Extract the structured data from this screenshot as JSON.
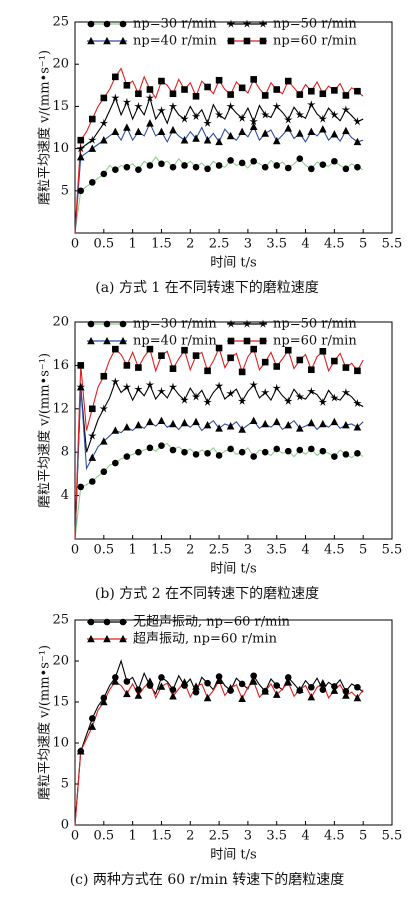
{
  "chart_data": [
    {
      "type": "line",
      "caption": "(a) 方式 1 在不同转速下的磨粒速度",
      "xlabel": "时间 t/s",
      "ylabel": "磨粒平均速度 v/(mm•s⁻¹)",
      "xlim": [
        0,
        5.5
      ],
      "xticks": [
        0,
        0.5,
        1.0,
        1.5,
        2.0,
        2.5,
        3.0,
        3.5,
        4.0,
        4.5,
        5.0,
        5.5
      ],
      "ylim": [
        0,
        25
      ],
      "yticks": [
        5,
        10,
        15,
        20,
        25
      ],
      "legend": "top",
      "legend_columns": 2,
      "x": [
        0,
        0.1,
        0.2,
        0.3,
        0.4,
        0.5,
        0.6,
        0.7,
        0.8,
        0.9,
        1.0,
        1.1,
        1.2,
        1.3,
        1.4,
        1.5,
        1.6,
        1.7,
        1.8,
        1.9,
        2.0,
        2.1,
        2.2,
        2.3,
        2.4,
        2.5,
        2.6,
        2.7,
        2.8,
        2.9,
        3.0,
        3.1,
        3.2,
        3.3,
        3.4,
        3.5,
        3.6,
        3.7,
        3.8,
        3.9,
        4.0,
        4.1,
        4.2,
        4.3,
        4.4,
        4.5,
        4.6,
        4.7,
        4.8,
        4.9,
        5.0
      ],
      "series": [
        {
          "name": "np=30 r/min",
          "color": "#8fcf8f",
          "marker": "circle",
          "marker_color": "#000000",
          "values": [
            0,
            5,
            5.5,
            6,
            6.5,
            7,
            8,
            7.5,
            8,
            7.8,
            8.2,
            7.5,
            8.5,
            8,
            9,
            8.2,
            8.5,
            7.8,
            8.8,
            8,
            8.5,
            7.8,
            8.3,
            7.6,
            8.5,
            8,
            7.8,
            8.6,
            8,
            8.3,
            7.7,
            8.5,
            8.2,
            7.8,
            8.6,
            8,
            8.4,
            7.7,
            8.2,
            8.8,
            8,
            7.6,
            8.4,
            8.1,
            7.9,
            8.5,
            8,
            7.6,
            8.2,
            7.8,
            7.5
          ]
        },
        {
          "name": "np=50 r/min",
          "color": "#000000",
          "marker": "star",
          "marker_color": "#000000",
          "values": [
            0,
            10,
            10.5,
            11,
            12,
            13,
            14.5,
            16,
            14,
            15.5,
            13.5,
            15,
            14,
            16,
            13.5,
            14.5,
            13,
            15,
            14,
            13.5,
            15,
            13.8,
            14.6,
            13,
            15.2,
            14,
            13.5,
            15,
            14.2,
            13.6,
            14.8,
            13.2,
            15.1,
            14,
            13.7,
            15,
            14.3,
            13.4,
            14.9,
            14,
            13.6,
            15.2,
            14.1,
            13.5,
            14.8,
            14,
            13.3,
            14.6,
            13.9,
            13.2,
            13.5
          ]
        },
        {
          "name": "np=40 r/min",
          "color": "#2f4f9f",
          "marker": "triangle",
          "marker_color": "#000000",
          "values": [
            0,
            9,
            9.5,
            10,
            10.5,
            11,
            11.5,
            12,
            11,
            12.5,
            11,
            12,
            11.5,
            13,
            11.5,
            12,
            10.8,
            12.2,
            11.5,
            11,
            12,
            11.2,
            12.5,
            11,
            11.8,
            10.8,
            12.3,
            11.5,
            11,
            12,
            11.4,
            12.6,
            11,
            11.8,
            12.2,
            10.9,
            11.6,
            12.4,
            11.2,
            11.8,
            10.8,
            12,
            11.5,
            12.3,
            11,
            11.7,
            10.9,
            12.1,
            11.3,
            10.8,
            11
          ]
        },
        {
          "name": "np=60 r/min",
          "color": "#e02020",
          "marker": "square",
          "marker_color": "#000000",
          "values": [
            0,
            11,
            12,
            13.5,
            15,
            16,
            17,
            18.5,
            19.5,
            17.5,
            18,
            16.5,
            18.5,
            17,
            16,
            18,
            17.5,
            16.5,
            18.2,
            17,
            17.8,
            16.2,
            18,
            17.3,
            16.5,
            18.1,
            17,
            16.4,
            17.9,
            17.2,
            16.6,
            18.2,
            17.1,
            16.3,
            17.8,
            17,
            16.5,
            18,
            17.2,
            16.4,
            17.6,
            16.8,
            17.9,
            16.5,
            17.4,
            16.9,
            17.7,
            16.3,
            17.2,
            16.8,
            16.2
          ]
        }
      ]
    },
    {
      "type": "line",
      "caption": "(b) 方式 2 在不同转速下的磨粒速度",
      "xlabel": "时间 t/s",
      "ylabel": "磨粒平均速度 v/(mm•s⁻¹)",
      "xlim": [
        0,
        5.5
      ],
      "xticks": [
        0,
        0.5,
        1.0,
        1.5,
        2.0,
        2.5,
        3.0,
        3.5,
        4.0,
        4.5,
        5.0,
        5.5
      ],
      "ylim": [
        0,
        20
      ],
      "yticks": [
        4,
        8,
        12,
        16,
        20
      ],
      "legend": "top",
      "legend_columns": 2,
      "x": [
        0,
        0.1,
        0.2,
        0.3,
        0.4,
        0.5,
        0.6,
        0.7,
        0.8,
        0.9,
        1.0,
        1.1,
        1.2,
        1.3,
        1.4,
        1.5,
        1.6,
        1.7,
        1.8,
        1.9,
        2.0,
        2.1,
        2.2,
        2.3,
        2.4,
        2.5,
        2.6,
        2.7,
        2.8,
        2.9,
        3.0,
        3.1,
        3.2,
        3.3,
        3.4,
        3.5,
        3.6,
        3.7,
        3.8,
        3.9,
        4.0,
        4.1,
        4.2,
        4.3,
        4.4,
        4.5,
        4.6,
        4.7,
        4.8,
        4.9,
        5.0
      ],
      "series": [
        {
          "name": "np=30 r/min",
          "color": "#8fcf8f",
          "marker": "circle",
          "marker_color": "#000000",
          "values": [
            0,
            4.8,
            5,
            5.3,
            5.8,
            6.2,
            6.8,
            7,
            7.4,
            7.6,
            7.8,
            8,
            8.2,
            8.4,
            8.1,
            8.6,
            8.8,
            8.2,
            8.5,
            8,
            8.3,
            7.8,
            8.2,
            7.9,
            8.4,
            7.7,
            8.1,
            8.3,
            7.8,
            8,
            8.4,
            7.6,
            8.2,
            8,
            7.7,
            8.3,
            7.9,
            8.1,
            7.6,
            8.2,
            7.8,
            8.3,
            7.7,
            8.1,
            7.9,
            7.6,
            8.2,
            7.8,
            7.5,
            7.9,
            7.6
          ]
        },
        {
          "name": "np=50 r/min",
          "color": "#000000",
          "marker": "star",
          "marker_color": "#000000",
          "values": [
            0,
            14,
            8,
            9.5,
            11,
            12,
            13,
            14.5,
            13.5,
            14,
            12.8,
            13.8,
            13.2,
            14.2,
            12.9,
            13.6,
            13,
            14,
            13.3,
            12.8,
            13.9,
            13.1,
            13.7,
            12.6,
            13.5,
            14.1,
            12.9,
            13.4,
            13.8,
            12.7,
            13.6,
            14.2,
            13,
            13.5,
            12.8,
            13.9,
            13.2,
            12.7,
            13.8,
            13.1,
            12.9,
            13.6,
            13.3,
            12.6,
            13.7,
            13,
            12.8,
            13.5,
            13.1,
            12.5,
            12.2
          ]
        },
        {
          "name": "np=40 r/min",
          "color": "#2f4f9f",
          "marker": "triangle",
          "marker_color": "#000000",
          "values": [
            0,
            14,
            6.5,
            7.5,
            8.5,
            9,
            9.5,
            10,
            9.8,
            10.3,
            10,
            10.5,
            10.2,
            10.8,
            10.4,
            10.9,
            10.3,
            10.6,
            10.1,
            10.7,
            10.3,
            10.8,
            10,
            10.5,
            10.9,
            10.2,
            10.6,
            10.4,
            10.8,
            10.1,
            10.5,
            10.9,
            10.2,
            10.6,
            10.3,
            10.8,
            10.1,
            10.5,
            10.9,
            10.2,
            10.4,
            10.7,
            10.1,
            10.6,
            10.3,
            10.8,
            10.2,
            10.5,
            10.6,
            10.3,
            10.8
          ]
        },
        {
          "name": "np=60 r/min",
          "color": "#e02020",
          "marker": "square",
          "marker_color": "#000000",
          "values": [
            0,
            16,
            10,
            12,
            14,
            15,
            16.5,
            17.5,
            17,
            16,
            17.2,
            15.8,
            16.8,
            17.5,
            15.5,
            16.9,
            17.3,
            15.7,
            16.6,
            17.4,
            15.6,
            16.9,
            17.2,
            15.5,
            16.4,
            17.6,
            15.8,
            16.7,
            17.1,
            15.4,
            16.8,
            17.5,
            15.6,
            16.3,
            17.2,
            15.9,
            16.6,
            17.4,
            15.7,
            16.5,
            17,
            15.6,
            16.8,
            17.3,
            15.5,
            16.4,
            17.1,
            15.8,
            16.2,
            15.5,
            16.5
          ]
        }
      ]
    },
    {
      "type": "line",
      "caption": "(c) 两种方式在 60 r/min 转速下的磨粒速度",
      "xlabel": "时间 t/s",
      "ylabel": "磨粒平均速度 v/(mm•s⁻¹)",
      "xlim": [
        0,
        5.5
      ],
      "xticks": [
        0,
        0.5,
        1.0,
        1.5,
        2.0,
        2.5,
        3.0,
        3.5,
        4.0,
        4.5,
        5.0,
        5.5
      ],
      "ylim": [
        0,
        25
      ],
      "yticks": [
        0,
        5,
        10,
        15,
        20,
        25
      ],
      "legend": "top",
      "legend_columns": 1,
      "x": [
        0,
        0.1,
        0.2,
        0.3,
        0.4,
        0.5,
        0.6,
        0.7,
        0.8,
        0.9,
        1.0,
        1.1,
        1.2,
        1.3,
        1.4,
        1.5,
        1.6,
        1.7,
        1.8,
        1.9,
        2.0,
        2.1,
        2.2,
        2.3,
        2.4,
        2.5,
        2.6,
        2.7,
        2.8,
        2.9,
        3.0,
        3.1,
        3.2,
        3.3,
        3.4,
        3.5,
        3.6,
        3.7,
        3.8,
        3.9,
        4.0,
        4.1,
        4.2,
        4.3,
        4.4,
        4.5,
        4.6,
        4.7,
        4.8,
        4.9,
        5.0
      ],
      "series": [
        {
          "name": "无超声振动, np=60 r/min",
          "color": "#000000",
          "marker": "circle",
          "marker_color": "#000000",
          "values": [
            0,
            9,
            11,
            13,
            14.5,
            15.5,
            17,
            18,
            20,
            17.5,
            18,
            16.5,
            18.5,
            17,
            16,
            18,
            17.5,
            16.5,
            18.2,
            17,
            17.8,
            16.2,
            18,
            17.3,
            16.5,
            18.1,
            17,
            16.4,
            17.9,
            17.2,
            16.6,
            18.2,
            17.1,
            16.3,
            17.8,
            17,
            16.5,
            18,
            17.2,
            16.4,
            17.6,
            16.8,
            17.9,
            16.5,
            17.4,
            16.9,
            17.7,
            16.3,
            17.2,
            16.8,
            16.2
          ]
        },
        {
          "name": "超声振动, np=60 r/min",
          "color": "#e02020",
          "marker": "triangle",
          "marker_color": "#000000",
          "values": [
            0,
            9,
            10.5,
            12,
            14,
            15,
            16.5,
            17.5,
            17,
            16,
            17.2,
            15.8,
            16.8,
            17.5,
            15.5,
            16.9,
            17.3,
            15.7,
            16.6,
            17.4,
            15.6,
            16.9,
            17.2,
            15.5,
            16.4,
            17.6,
            15.8,
            16.7,
            17.1,
            15.4,
            16.8,
            17.5,
            15.6,
            16.3,
            17.2,
            15.9,
            16.6,
            17.4,
            15.7,
            16.5,
            17,
            15.6,
            16.8,
            17.3,
            15.5,
            16.4,
            17.1,
            15.8,
            16.2,
            15.5,
            16.5
          ]
        }
      ]
    }
  ]
}
